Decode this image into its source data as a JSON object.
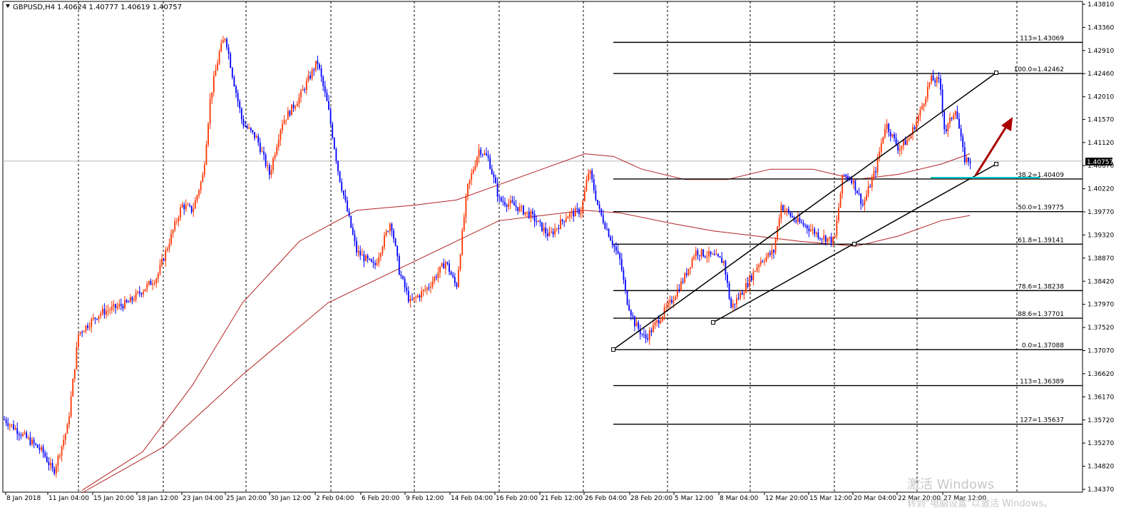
{
  "window": {
    "symbol_label": "GBPUSD,H4",
    "ohlc_label": "1.40624 1.40777 1.40619 1.40757",
    "current_price_label": "1.40757",
    "current_price": 1.40757
  },
  "colors": {
    "bull": "#ff3300",
    "bear": "#0000ff",
    "ma": "#b22222",
    "grid": "#000000",
    "fib": "#000000",
    "trendline": "#000000",
    "support_highlight": "#00c8c8",
    "arrow": "#aa0000",
    "price_line": "#b4b4b4"
  },
  "watermark": {
    "line1": "激活 Windows",
    "line2": "转到\"电脑设置\"以激活 Windows。"
  },
  "chart_data": {
    "type": "candlestick",
    "title": "GBPUSD,H4",
    "y_range": [
      1.3425,
      1.439
    ],
    "y_ticks": [
      "1.43810",
      "1.43360",
      "1.42910",
      "1.42460",
      "1.42010",
      "1.41570",
      "1.41120",
      "1.40670",
      "1.40220",
      "1.39770",
      "1.39320",
      "1.38870",
      "1.38420",
      "1.37970",
      "1.37520",
      "1.37070",
      "1.36620",
      "1.36170",
      "1.35720",
      "1.35270",
      "1.34820",
      "1.34370"
    ],
    "x_labels": [
      "8 Jan 2018",
      "11 Jan 04:00",
      "15 Jan 20:00",
      "18 Jan 12:00",
      "23 Jan 04:00",
      "25 Jan 20:00",
      "30 Jan 12:00",
      "2 Feb 04:00",
      "6 Feb 20:00",
      "9 Feb 12:00",
      "14 Feb 04:00",
      "16 Feb 20:00",
      "21 Feb 12:00",
      "26 Feb 04:00",
      "28 Feb 20:00",
      "5 Mar 12:00",
      "8 Mar 04:00",
      "12 Mar 20:00",
      "15 Mar 12:00",
      "20 Mar 04:00",
      "22 Mar 20:00",
      "27 Mar 12:00"
    ],
    "price_path": [
      [
        0,
        1.358
      ],
      [
        60,
        1.351
      ],
      [
        75,
        1.347
      ],
      [
        95,
        1.356
      ],
      [
        110,
        1.374
      ],
      [
        140,
        1.378
      ],
      [
        180,
        1.38
      ],
      [
        220,
        1.385
      ],
      [
        255,
        1.399
      ],
      [
        270,
        1.398
      ],
      [
        285,
        1.405
      ],
      [
        295,
        1.42
      ],
      [
        308,
        1.429
      ],
      [
        316,
        1.432
      ],
      [
        325,
        1.425
      ],
      [
        340,
        1.415
      ],
      [
        360,
        1.412
      ],
      [
        378,
        1.405
      ],
      [
        395,
        1.415
      ],
      [
        420,
        1.42
      ],
      [
        445,
        1.427
      ],
      [
        460,
        1.418
      ],
      [
        475,
        1.405
      ],
      [
        500,
        1.39
      ],
      [
        525,
        1.387
      ],
      [
        548,
        1.396
      ],
      [
        560,
        1.386
      ],
      [
        575,
        1.38
      ],
      [
        600,
        1.383
      ],
      [
        625,
        1.388
      ],
      [
        640,
        1.383
      ],
      [
        655,
        1.402
      ],
      [
        672,
        1.41
      ],
      [
        685,
        1.408
      ],
      [
        700,
        1.4
      ],
      [
        720,
        1.399
      ],
      [
        745,
        1.397
      ],
      [
        770,
        1.393
      ],
      [
        795,
        1.397
      ],
      [
        815,
        1.398
      ],
      [
        826,
        1.406
      ],
      [
        840,
        1.398
      ],
      [
        855,
        1.393
      ],
      [
        870,
        1.388
      ],
      [
        878,
        1.381
      ],
      [
        890,
        1.376
      ],
      [
        905,
        1.373
      ],
      [
        920,
        1.376
      ],
      [
        940,
        1.38
      ],
      [
        960,
        1.385
      ],
      [
        975,
        1.39
      ],
      [
        1000,
        1.389
      ],
      [
        1015,
        1.388
      ],
      [
        1025,
        1.379
      ],
      [
        1045,
        1.383
      ],
      [
        1065,
        1.388
      ],
      [
        1085,
        1.39
      ],
      [
        1095,
        1.399
      ],
      [
        1115,
        1.396
      ],
      [
        1130,
        1.395
      ],
      [
        1150,
        1.393
      ],
      [
        1170,
        1.392
      ],
      [
        1182,
        1.405
      ],
      [
        1195,
        1.404
      ],
      [
        1210,
        1.399
      ],
      [
        1228,
        1.406
      ],
      [
        1242,
        1.415
      ],
      [
        1260,
        1.41
      ],
      [
        1275,
        1.412
      ],
      [
        1290,
        1.417
      ],
      [
        1305,
        1.4235
      ],
      [
        1318,
        1.423
      ],
      [
        1325,
        1.413
      ],
      [
        1340,
        1.418
      ],
      [
        1352,
        1.408
      ],
      [
        1362,
        1.4076
      ]
    ],
    "ma_fast_path": [
      [
        115,
        1.3435
      ],
      [
        200,
        1.351
      ],
      [
        270,
        1.364
      ],
      [
        340,
        1.38
      ],
      [
        420,
        1.392
      ],
      [
        500,
        1.398
      ],
      [
        580,
        1.399
      ],
      [
        640,
        1.4
      ],
      [
        700,
        1.403
      ],
      [
        760,
        1.406
      ],
      [
        820,
        1.409
      ],
      [
        860,
        1.4085
      ],
      [
        900,
        1.406
      ],
      [
        960,
        1.404
      ],
      [
        1020,
        1.404
      ],
      [
        1080,
        1.406
      ],
      [
        1140,
        1.406
      ],
      [
        1200,
        1.404
      ],
      [
        1260,
        1.405
      ],
      [
        1320,
        1.407
      ],
      [
        1360,
        1.409
      ]
    ],
    "ma_slow_path": [
      [
        115,
        1.343
      ],
      [
        230,
        1.352
      ],
      [
        340,
        1.366
      ],
      [
        460,
        1.38
      ],
      [
        580,
        1.388
      ],
      [
        640,
        1.392
      ],
      [
        700,
        1.396
      ],
      [
        760,
        1.397
      ],
      [
        820,
        1.398
      ],
      [
        870,
        1.3975
      ],
      [
        940,
        1.3955
      ],
      [
        1000,
        1.394
      ],
      [
        1060,
        1.393
      ],
      [
        1120,
        1.392
      ],
      [
        1200,
        1.391
      ],
      [
        1260,
        1.393
      ],
      [
        1320,
        1.396
      ],
      [
        1360,
        1.397
      ]
    ],
    "fib_levels": [
      {
        "label": "113=1.43069",
        "price": 1.43069
      },
      {
        "label": "100.0=1.42462",
        "price": 1.42462
      },
      {
        "label": "38.2=1.40409",
        "price": 1.40409
      },
      {
        "label": "50.0=1.39775",
        "price": 1.39775
      },
      {
        "label": "61.8=1.39141",
        "price": 1.39141
      },
      {
        "label": "78.6=1.38238",
        "price": 1.38238
      },
      {
        "label": "88.6=1.37701",
        "price": 1.37701
      },
      {
        "label": "0.0=1.37088",
        "price": 1.37088
      },
      {
        "label": "113=1.36389",
        "price": 1.36389
      },
      {
        "label": "127=1.35637",
        "price": 1.35637
      }
    ],
    "grid": true
  }
}
